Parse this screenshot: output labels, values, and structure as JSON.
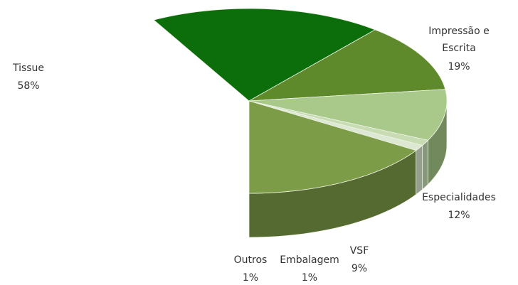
{
  "chart_data": {
    "type": "pie",
    "three_d": true,
    "categories": [
      "Tissue",
      "Impressão e Escrita",
      "Especialidades",
      "VSF",
      "Embalagem",
      "Outros"
    ],
    "values": [
      58,
      19,
      12,
      9,
      1,
      1
    ],
    "value_labels": [
      "58%",
      "19%",
      "12%",
      "9%",
      "1%",
      "1%"
    ],
    "colors": [
      "#7d9c47",
      "#0b6e0b",
      "#5e8a2c",
      "#a8c98a",
      "#c8dcb4",
      "#dde8d2"
    ]
  }
}
